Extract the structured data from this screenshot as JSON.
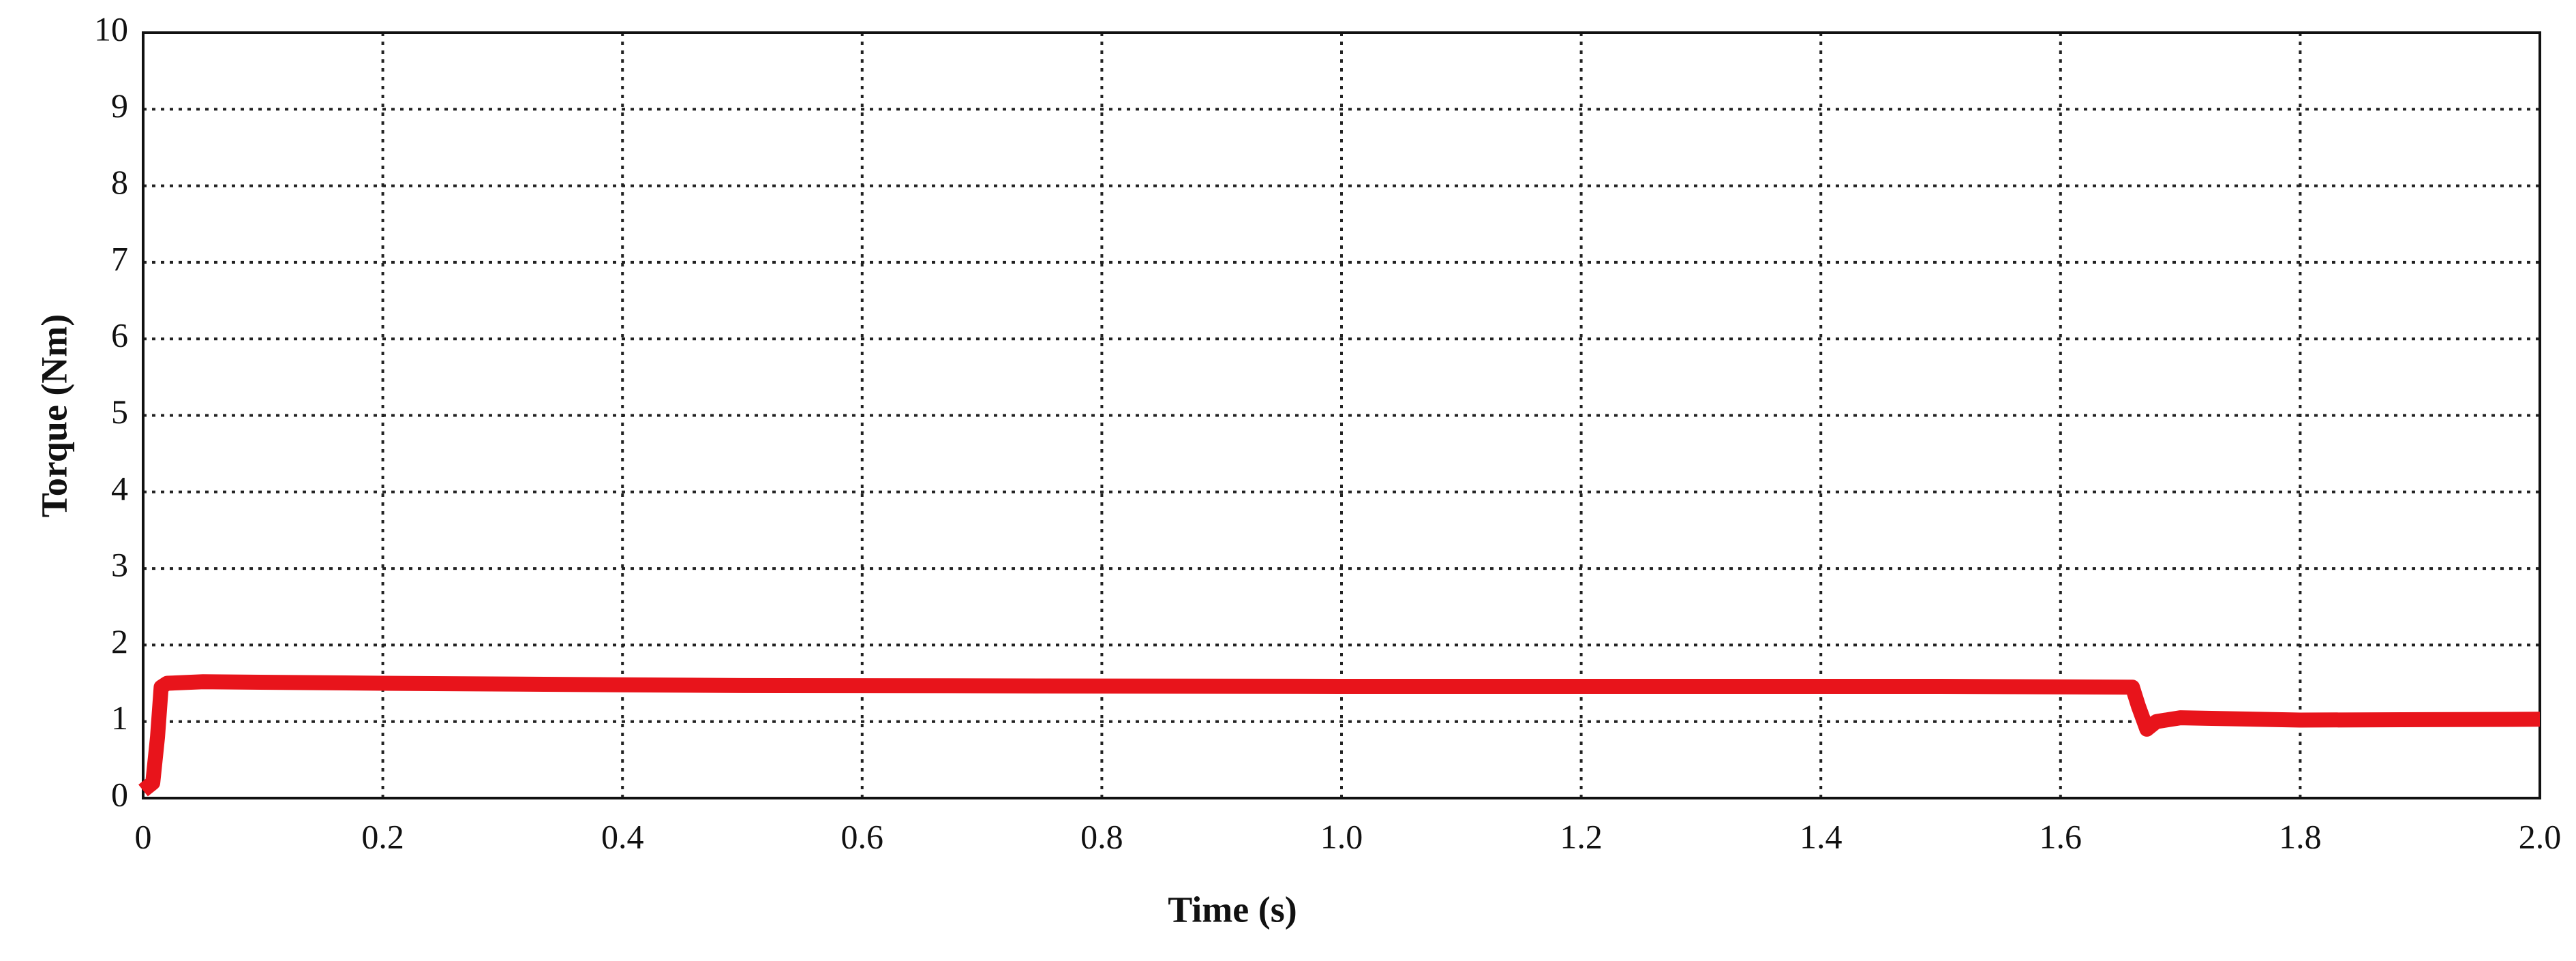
{
  "chart_data": {
    "type": "line",
    "xlabel": "Time (s)",
    "ylabel": "Torque (Nm)",
    "x": [
      0,
      0.008,
      0.012,
      0.015,
      0.02,
      0.05,
      0.2,
      0.5,
      1.0,
      1.5,
      1.66,
      1.665,
      1.672,
      1.68,
      1.7,
      1.8,
      2.0
    ],
    "values": [
      0.1,
      0.2,
      0.8,
      1.45,
      1.5,
      1.52,
      1.5,
      1.47,
      1.46,
      1.46,
      1.45,
      1.2,
      0.9,
      1.0,
      1.05,
      1.02,
      1.03
    ],
    "color": "#e8141b",
    "xlim": [
      0,
      2
    ],
    "ylim": [
      0,
      10
    ],
    "xticks": [
      0,
      0.2,
      0.4,
      0.6,
      0.8,
      {
        "value": 1,
        "label": "1.0"
      },
      1.2,
      1.4,
      1.6,
      1.8,
      {
        "value": 2,
        "label": "2.0"
      }
    ],
    "yticks": [
      0,
      1,
      2,
      3,
      4,
      5,
      6,
      7,
      8,
      9,
      10
    ],
    "grid": true
  }
}
